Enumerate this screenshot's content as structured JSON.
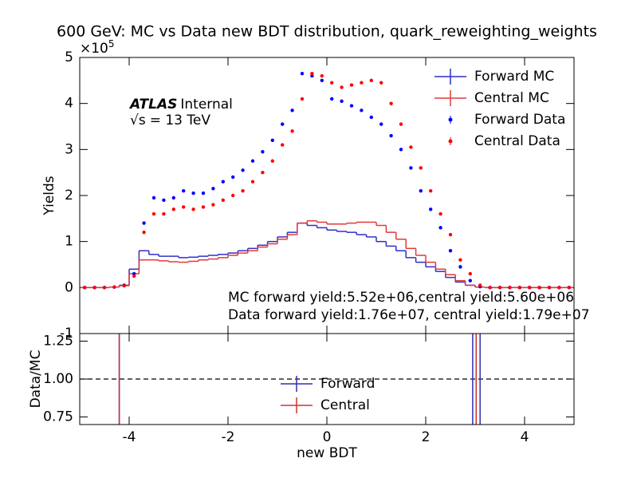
{
  "chart_data": [
    {
      "type": "histogram",
      "title": "600 GeV: MC vs Data new BDT distribution, quark_reweighting_weights",
      "ylabel": "Yields",
      "offset_text": {
        "base": "×10",
        "exponent": "5"
      },
      "atlas_label": {
        "bold": "ATLAS",
        "text": "Internal"
      },
      "energy_label": {
        "root": "√s",
        "text": "= 13 TeV"
      },
      "annotations": [
        "MC forward yield:5.52e+06,central yield:5.60e+06",
        "Data forward yield:1.76e+07, central yield:1.79e+07"
      ],
      "legend": "upper right",
      "xlim": [
        -5,
        5
      ],
      "xticks": [
        -4,
        -2,
        0,
        2,
        4
      ],
      "ylim": [
        -1,
        5
      ],
      "yticks": [
        -1,
        0,
        1,
        2,
        3,
        4,
        5
      ],
      "bins": [
        -5,
        -4.8,
        -4.6,
        -4.4,
        -4.2,
        -4,
        -3.8,
        -3.6,
        -3.4,
        -3.2,
        -3,
        -2.8,
        -2.6,
        -2.4,
        -2.2,
        -2,
        -1.8,
        -1.6,
        -1.4,
        -1.2,
        -1,
        -0.8,
        -0.6,
        -0.4,
        -0.2,
        0,
        0.2,
        0.4,
        0.6,
        0.8,
        1,
        1.2,
        1.4,
        1.6,
        1.8,
        2,
        2.2,
        2.4,
        2.6,
        2.8,
        3,
        3.2,
        3.4,
        3.6,
        3.8,
        4,
        4.2,
        4.4,
        4.6,
        4.8,
        5
      ],
      "series": [
        {
          "name": "Forward MC",
          "style": "step",
          "color": "#2f2fc8",
          "values": [
            0,
            0,
            0,
            0.01,
            0.05,
            0.4,
            0.8,
            0.72,
            0.68,
            0.68,
            0.65,
            0.66,
            0.68,
            0.7,
            0.72,
            0.75,
            0.8,
            0.85,
            0.92,
            1.0,
            1.1,
            1.2,
            1.4,
            1.35,
            1.3,
            1.25,
            1.22,
            1.2,
            1.15,
            1.1,
            1.0,
            0.9,
            0.8,
            0.65,
            0.55,
            0.45,
            0.35,
            0.22,
            0.12,
            0.05,
            0.01,
            0,
            0,
            0,
            0,
            0,
            0,
            0,
            0,
            0
          ]
        },
        {
          "name": "Central MC",
          "style": "step",
          "color": "#e03a3a",
          "values": [
            0,
            0,
            0,
            0.01,
            0.04,
            0.3,
            0.6,
            0.6,
            0.58,
            0.56,
            0.55,
            0.57,
            0.6,
            0.62,
            0.65,
            0.7,
            0.75,
            0.8,
            0.88,
            0.95,
            1.05,
            1.15,
            1.4,
            1.45,
            1.42,
            1.38,
            1.38,
            1.4,
            1.42,
            1.42,
            1.35,
            1.2,
            1.05,
            0.85,
            0.7,
            0.55,
            0.4,
            0.28,
            0.15,
            0.05,
            0.01,
            0,
            0,
            0,
            0,
            0,
            0,
            0,
            0,
            0
          ]
        },
        {
          "name": "Forward Data",
          "style": "points",
          "color": "#0000ff",
          "values": [
            0,
            0,
            0,
            0.01,
            0.05,
            0.3,
            1.4,
            1.95,
            1.9,
            1.95,
            2.1,
            2.05,
            2.05,
            2.15,
            2.3,
            2.4,
            2.55,
            2.75,
            2.95,
            3.2,
            3.55,
            3.85,
            4.65,
            4.6,
            4.5,
            4.1,
            4.05,
            3.95,
            3.85,
            3.7,
            3.55,
            3.3,
            3.0,
            2.6,
            2.1,
            1.7,
            1.3,
            0.8,
            0.45,
            0.15,
            0.02,
            0,
            0,
            0,
            0,
            0,
            0,
            0,
            0,
            0
          ]
        },
        {
          "name": "Central Data",
          "style": "points",
          "color": "#ff0000",
          "values": [
            0,
            0,
            0,
            0.01,
            0.04,
            0.25,
            1.2,
            1.6,
            1.6,
            1.7,
            1.75,
            1.7,
            1.75,
            1.8,
            1.9,
            2.0,
            2.1,
            2.3,
            2.5,
            2.75,
            3.1,
            3.4,
            4.1,
            4.65,
            4.6,
            4.45,
            4.35,
            4.4,
            4.45,
            4.5,
            4.45,
            4.0,
            3.55,
            3.05,
            2.6,
            2.1,
            1.6,
            1.15,
            0.6,
            0.3,
            0.05,
            0,
            0,
            0,
            0,
            0,
            0,
            0,
            0,
            0
          ]
        }
      ]
    },
    {
      "type": "errorbar",
      "xlabel": "new BDT",
      "ylabel": "Data/MC",
      "legend": "lower center",
      "xlim": [
        -5,
        5
      ],
      "xticks": [
        -4,
        -2,
        0,
        2,
        4
      ],
      "ylim": [
        0.7,
        1.3
      ],
      "yticks": [
        {
          "value": 0.75,
          "label": "0.75"
        },
        {
          "value": 1,
          "label": "1.00"
        },
        {
          "value": 1.25,
          "label": "1.25"
        }
      ],
      "reference_line": 1,
      "series": [
        {
          "name": "Forward",
          "color": "#3030b0",
          "x": [
            -4.2,
            2.95,
            3.1
          ],
          "values": [
            1,
            1,
            1
          ],
          "errors": [
            2,
            2,
            2
          ]
        },
        {
          "name": "Central",
          "color": "#d03030",
          "x": [
            -4.2,
            3.02
          ],
          "values": [
            1,
            1
          ],
          "errors": [
            2,
            2
          ]
        }
      ]
    }
  ]
}
